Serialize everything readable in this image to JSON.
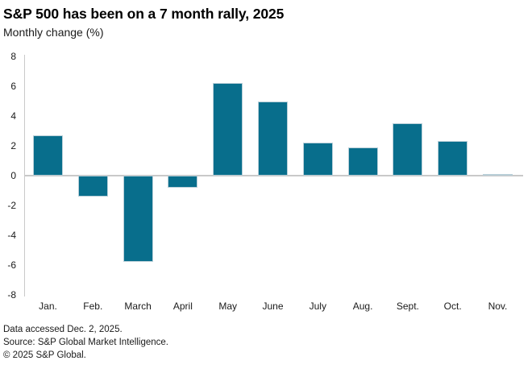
{
  "header": {
    "title": "S&P 500 has been on a 7 month rally, 2025",
    "subtitle": "Monthly change (%)"
  },
  "chart_data": {
    "type": "bar",
    "title": "S&P 500 has been on a 7 month rally, 2025",
    "subtitle": "Monthly change (%)",
    "categories": [
      "Jan.",
      "Feb.",
      "March",
      "April",
      "May",
      "June",
      "July",
      "Aug.",
      "Sept.",
      "Oct.",
      "Nov."
    ],
    "values": [
      2.7,
      -1.4,
      -5.8,
      -0.8,
      6.2,
      5.0,
      2.2,
      1.9,
      3.5,
      2.3,
      0.1
    ],
    "xlabel": "",
    "ylabel": "Monthly change (%)",
    "ylim": [
      -8,
      8
    ],
    "yticks": [
      8,
      6,
      4,
      2,
      0,
      -2,
      -4,
      -6,
      -8
    ],
    "grid": false,
    "legend": "none",
    "bar_color": "#086e8c",
    "axis_color": "#c9c9c9"
  },
  "footer": {
    "line1": "Data accessed Dec. 2, 2025.",
    "line2": "Source: S&P Global Market Intelligence.",
    "line3": "© 2025 S&P Global."
  }
}
